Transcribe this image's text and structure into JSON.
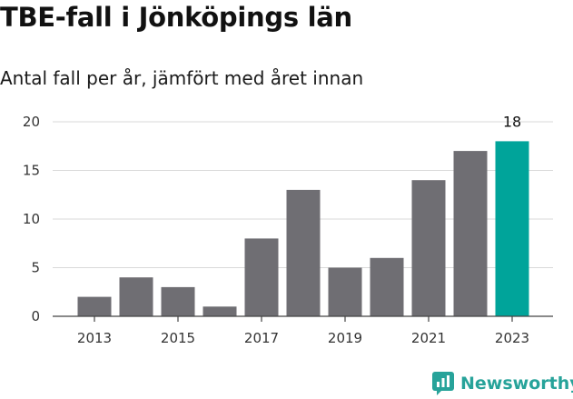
{
  "title": "TBE-fall i Jönköpings län",
  "subtitle": "Antal fall per år, jämfört med året innan",
  "brand": {
    "name": "Newsworthy",
    "icon": "newsworthy-logo-icon"
  },
  "colors": {
    "bar": "#6f6e73",
    "highlight": "#00a49a",
    "grid": "#d9d9d9",
    "axis": "#444444"
  },
  "chart_data": {
    "type": "bar",
    "title": "TBE-fall i Jönköpings län",
    "subtitle": "Antal fall per år, jämfört med året innan",
    "xlabel": "",
    "ylabel": "",
    "categories": [
      "2013",
      "2014",
      "2015",
      "2016",
      "2017",
      "2018",
      "2019",
      "2020",
      "2021",
      "2022",
      "2023"
    ],
    "values": [
      2,
      4,
      3,
      1,
      8,
      13,
      5,
      6,
      14,
      17,
      18
    ],
    "highlight_index": 10,
    "highlight_label": "18",
    "x_tick_labels": [
      "2013",
      "2015",
      "2017",
      "2019",
      "2021",
      "2023"
    ],
    "y_ticks": [
      0,
      5,
      10,
      15,
      20
    ],
    "ylim": [
      0,
      20
    ],
    "grid": true,
    "legend": "none"
  }
}
